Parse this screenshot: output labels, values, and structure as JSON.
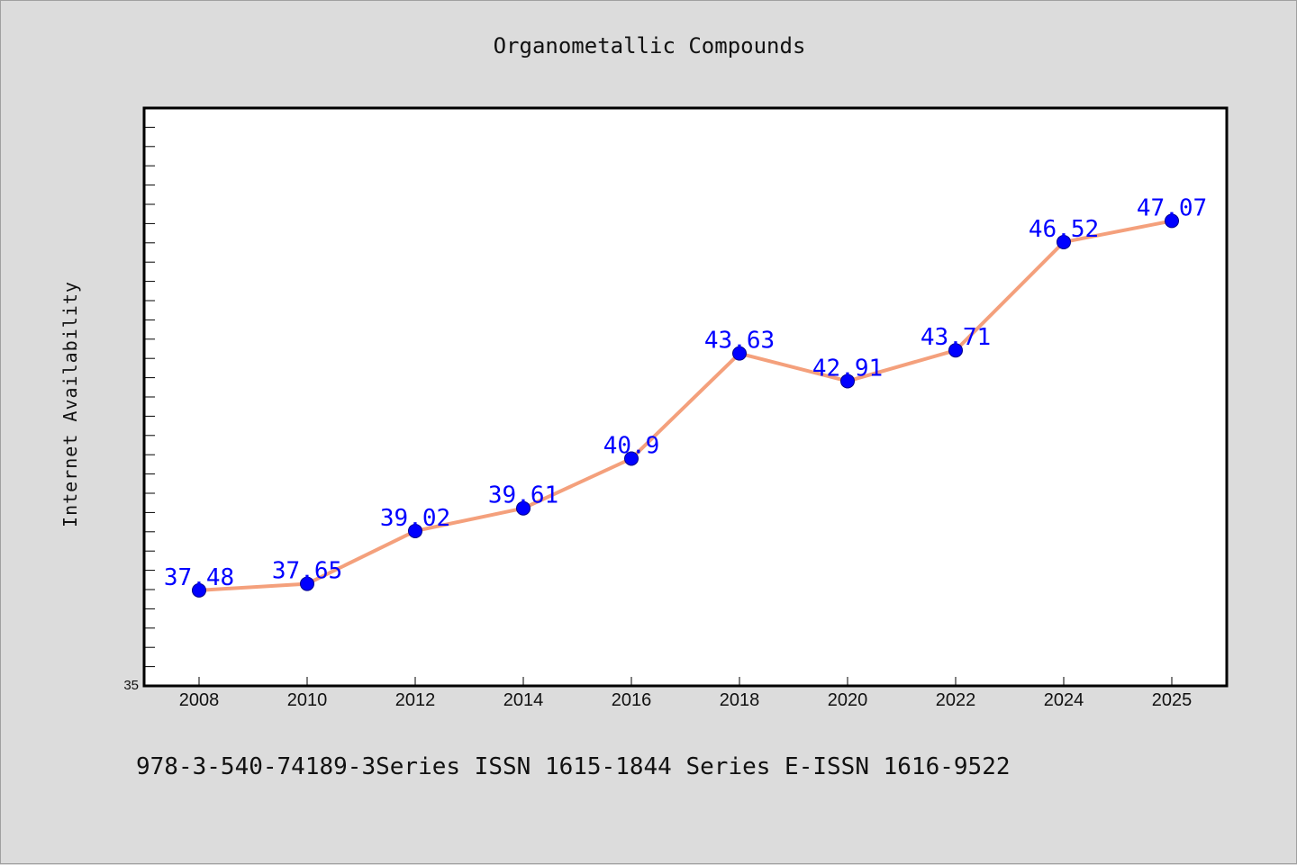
{
  "chart_data": {
    "type": "line",
    "title": "Organometallic Compounds",
    "xlabel": "",
    "ylabel": "Internet Availability",
    "categories": [
      "2008",
      "2010",
      "2012",
      "2014",
      "2016",
      "2018",
      "2020",
      "2022",
      "2024",
      "2025"
    ],
    "series": [
      {
        "values": [
          37.48,
          37.65,
          39.02,
          39.61,
          40.9,
          43.63,
          42.91,
          43.71,
          46.52,
          47.07
        ],
        "data_labels": [
          "37.48",
          "37.65",
          "39.02",
          "39.61",
          "40.9",
          "43.63",
          "42.91",
          "43.71",
          "46.52",
          "47.07"
        ]
      }
    ],
    "ylim": [
      35,
      50
    ],
    "y_tick_labels": [
      "35"
    ],
    "grid": false,
    "legend": "none",
    "colors": {
      "line": "#f4a07c",
      "marker": "#0000ff",
      "data_label": "#0000ff",
      "plot_background": "#ffffff",
      "page_background": "#dcdcdc"
    }
  },
  "footer": {
    "text": "978-3-540-74189-3Series ISSN 1615-1844 Series E-ISSN 1616-9522"
  }
}
